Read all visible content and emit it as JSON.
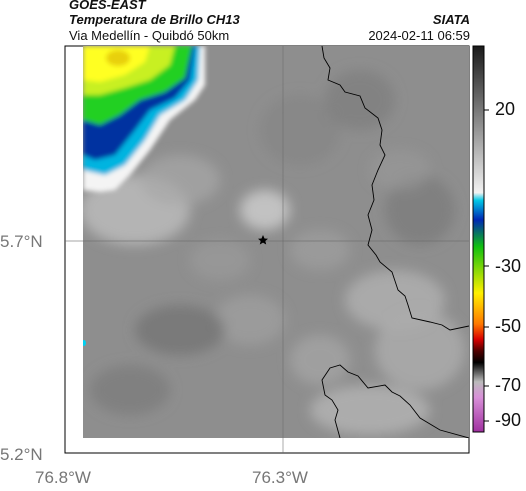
{
  "header": {
    "satellite": "GOES-EAST",
    "product": "Temperatura de Brillo CH13",
    "route": "Via Medellín - Quibdó 50km",
    "organization": "SIATA",
    "datetime": "2024-02-11 06:59"
  },
  "axes": {
    "x_ticks": [
      "76.8°W",
      "76.3°W"
    ],
    "y_ticks": [
      "5.7°N",
      "5.2°N"
    ]
  },
  "colorbar": {
    "ticks": [
      "20",
      "-30",
      "-50",
      "-70",
      "-90"
    ],
    "colors": {
      "grey_dark": "#1a1a1a",
      "grey_light": "#f0f0f0",
      "cyan": "#00c8e6",
      "blue": "#0028b4",
      "green": "#10c010",
      "yellow": "#fff000",
      "orange": "#ff7800",
      "red": "#d80000",
      "dark_red": "#500000",
      "magenta": "#c050c0"
    }
  },
  "map": {
    "marker": "star-marker",
    "background_color": "#8e8e8e",
    "cloud_colors": {
      "core_yellow": "#ffff20",
      "mid_green": "#22d022",
      "outer_blue": "#0030a0",
      "edge_cyan": "#00b4e0"
    }
  }
}
